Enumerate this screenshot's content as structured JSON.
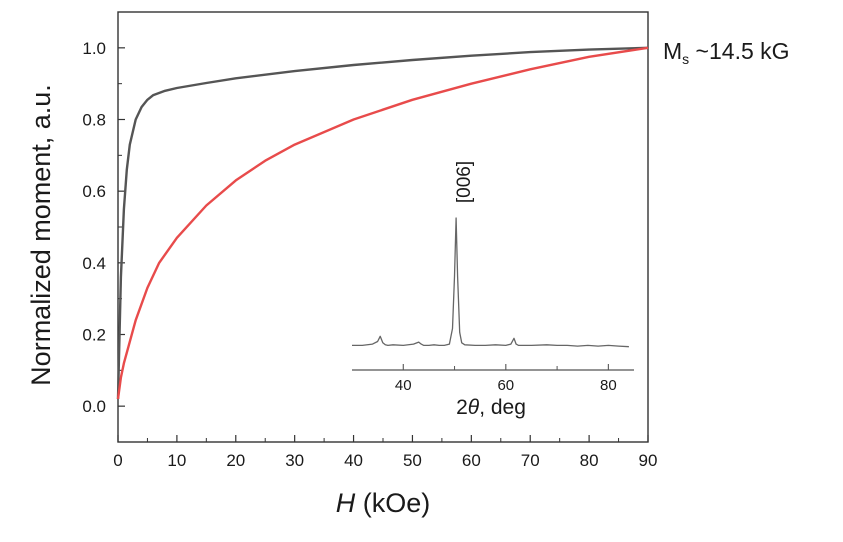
{
  "chart_data": [
    {
      "type": "line",
      "xlabel_italic": "H",
      "xlabel_rest": " (kOe)",
      "ylabel": "Normalized moment, a.u.",
      "xlim": [
        0,
        90
      ],
      "ylim": [
        -0.1,
        1.1
      ],
      "x_ticks": [
        "0",
        "10",
        "20",
        "30",
        "40",
        "50",
        "60",
        "70",
        "80",
        "90"
      ],
      "y_ticks": [
        "0.0",
        "0.2",
        "0.4",
        "0.6",
        "0.8",
        "1.0"
      ],
      "grid": false,
      "annotation": {
        "main": "M",
        "sub": "s",
        "rest": " ~14.5 kG"
      },
      "series": [
        {
          "color": "#555555",
          "x": [
            0,
            0.5,
            1,
            1.5,
            2,
            3,
            4,
            5,
            6,
            8,
            10,
            15,
            20,
            30,
            40,
            50,
            60,
            70,
            80,
            90
          ],
          "y": [
            0.02,
            0.36,
            0.55,
            0.66,
            0.73,
            0.8,
            0.835,
            0.855,
            0.868,
            0.88,
            0.888,
            0.902,
            0.915,
            0.935,
            0.952,
            0.966,
            0.978,
            0.988,
            0.995,
            1.0
          ]
        },
        {
          "color": "#e84b4b",
          "x": [
            0,
            0.5,
            1,
            2,
            3,
            5,
            7,
            10,
            15,
            20,
            25,
            30,
            40,
            50,
            60,
            70,
            80,
            90
          ],
          "y": [
            0.02,
            0.08,
            0.12,
            0.18,
            0.24,
            0.33,
            0.4,
            0.47,
            0.56,
            0.63,
            0.685,
            0.73,
            0.8,
            0.855,
            0.9,
            0.94,
            0.975,
            1.0
          ]
        }
      ]
    },
    {
      "type": "line",
      "xlabel_prefix": "2",
      "xlabel_theta": "θ",
      "xlabel_rest": ", deg",
      "xlim": [
        30,
        85
      ],
      "x_ticks": [
        "40",
        "60",
        "80"
      ],
      "peak_label": "[006]",
      "series": [
        {
          "color": "#666666",
          "x": [
            30,
            32,
            34,
            35,
            35.5,
            36,
            36.5,
            37,
            38,
            40,
            42,
            43,
            43.5,
            44,
            45,
            46,
            47,
            48,
            49,
            49.6,
            50,
            50.3,
            50.6,
            51,
            51.4,
            52,
            54,
            56,
            58,
            60,
            61,
            61.6,
            62,
            62.5,
            63,
            65,
            68,
            70,
            72,
            74,
            76,
            78,
            80,
            82,
            84
          ],
          "y": [
            0.02,
            0.02,
            0.03,
            0.05,
            0.09,
            0.04,
            0.025,
            0.02,
            0.025,
            0.02,
            0.03,
            0.045,
            0.03,
            0.02,
            0.02,
            0.025,
            0.02,
            0.02,
            0.03,
            0.15,
            0.55,
            1.0,
            0.55,
            0.12,
            0.04,
            0.025,
            0.02,
            0.02,
            0.025,
            0.02,
            0.03,
            0.075,
            0.03,
            0.02,
            0.02,
            0.02,
            0.025,
            0.02,
            0.02,
            0.015,
            0.02,
            0.015,
            0.02,
            0.015,
            0.01
          ]
        }
      ]
    }
  ]
}
